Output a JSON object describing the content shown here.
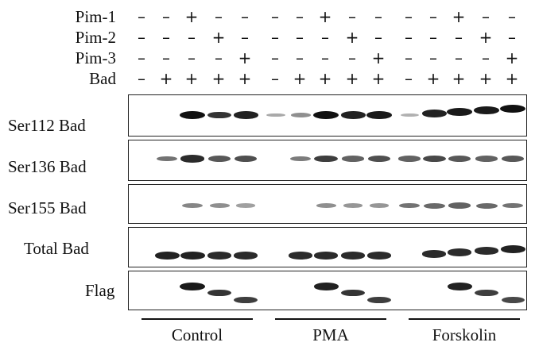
{
  "treatment_rows": [
    {
      "label": "Pim-1",
      "signs": [
        "–",
        "–",
        "+",
        "–",
        "–",
        "–",
        "–",
        "+",
        "–",
        "–",
        "–",
        "–",
        "+",
        "–",
        "–"
      ]
    },
    {
      "label": "Pim-2",
      "signs": [
        "–",
        "–",
        "–",
        "+",
        "–",
        "–",
        "–",
        "–",
        "+",
        "–",
        "–",
        "–",
        "–",
        "+",
        "–"
      ]
    },
    {
      "label": "Pim-3",
      "signs": [
        "–",
        "–",
        "–",
        "–",
        "+",
        "–",
        "–",
        "–",
        "–",
        "+",
        "–",
        "–",
        "–",
        "–",
        "+"
      ]
    },
    {
      "label": "Bad",
      "signs": [
        "–",
        "+",
        "+",
        "+",
        "+",
        "–",
        "+",
        "+",
        "+",
        "+",
        "–",
        "+",
        "+",
        "+",
        "+"
      ]
    }
  ],
  "blots": [
    {
      "label": "Ser112 Bad",
      "intensities": [
        0,
        0,
        1.0,
        0.8,
        0.9,
        0.15,
        0.3,
        1.0,
        0.9,
        0.95,
        0.1,
        0.9,
        0.95,
        0.95,
        1.0
      ]
    },
    {
      "label": "Ser136 Bad",
      "intensities": [
        0,
        0.45,
        0.85,
        0.6,
        0.65,
        0,
        0.4,
        0.75,
        0.55,
        0.65,
        0.55,
        0.7,
        0.6,
        0.55,
        0.6
      ]
    },
    {
      "label": "Ser155 Bad",
      "intensities": [
        0,
        0,
        0.35,
        0.3,
        0.2,
        0,
        0,
        0.3,
        0.25,
        0.25,
        0.45,
        0.5,
        0.55,
        0.5,
        0.45
      ]
    },
    {
      "label": "Total Bad",
      "intensities": [
        0,
        0.9,
        0.9,
        0.85,
        0.85,
        0,
        0.85,
        0.85,
        0.85,
        0.85,
        0,
        0.85,
        0.85,
        0.85,
        0.9
      ]
    },
    {
      "label": "Flag",
      "intensities": [
        0,
        0,
        0.95,
        0.8,
        0.75,
        0,
        0,
        0.9,
        0.8,
        0.75,
        0,
        0,
        0.9,
        0.75,
        0.7
      ]
    }
  ],
  "groups": [
    "Control",
    "PMA",
    "Forskolin"
  ]
}
